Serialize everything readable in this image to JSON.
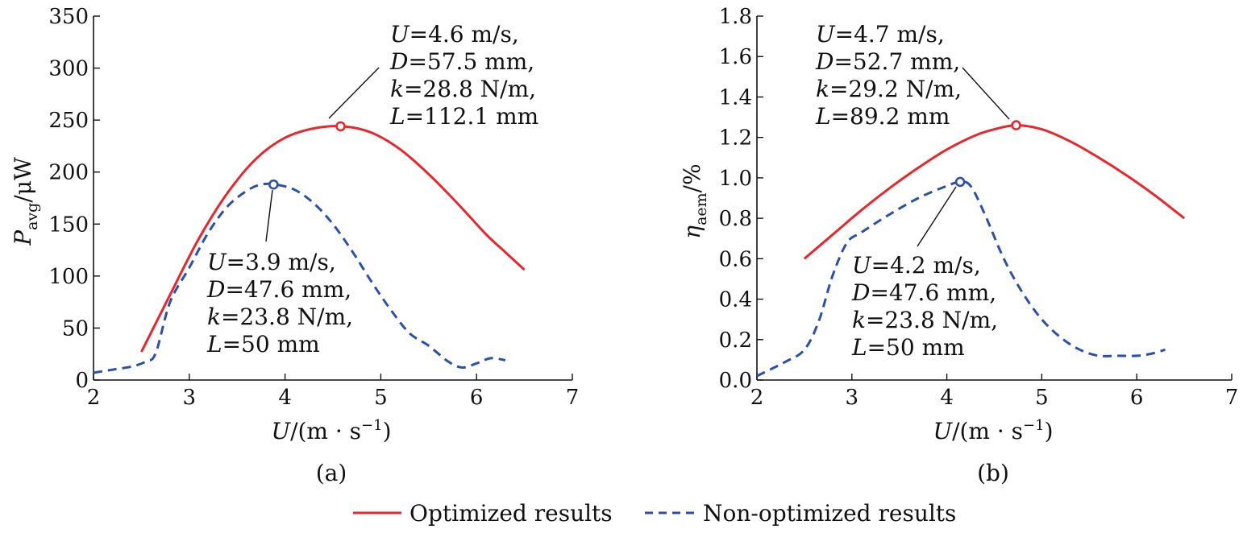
{
  "chart_data": [
    {
      "type": "line",
      "panel_label": "(a)",
      "xlabel": "U/(m·s⁻¹)",
      "ylabel": "Pavg/μW",
      "ylabel_main": "P",
      "ylabel_sub": "avg",
      "ylabel_unit": "/μW",
      "xlim": [
        2,
        7
      ],
      "ylim": [
        0,
        350
      ],
      "xticks": [
        "2",
        "3",
        "4",
        "5",
        "6",
        "7"
      ],
      "yticks": [
        "0",
        "50",
        "100",
        "150",
        "200",
        "250",
        "300",
        "350"
      ],
      "series": [
        {
          "name": "Optimized results",
          "color": "#e8262d",
          "style": "solid",
          "x": [
            2.5,
            2.8,
            3.1,
            3.4,
            3.7,
            4.0,
            4.3,
            4.6,
            4.9,
            5.2,
            5.5,
            5.8,
            6.1,
            6.3,
            6.5
          ],
          "y": [
            27,
            82,
            136,
            180,
            213,
            233,
            242,
            244,
            238,
            222,
            198,
            170,
            140,
            123,
            106
          ]
        },
        {
          "name": "Non-optimized results",
          "color": "#2b4faa",
          "style": "dashed",
          "x": [
            2.0,
            2.2,
            2.4,
            2.55,
            2.65,
            2.8,
            3.0,
            3.2,
            3.4,
            3.6,
            3.75,
            3.9,
            4.1,
            4.3,
            4.5,
            4.7,
            4.9,
            5.1,
            5.3,
            5.5,
            5.7,
            5.85,
            6.0,
            6.15,
            6.3
          ],
          "y": [
            7,
            10,
            13,
            18,
            26,
            75,
            108,
            142,
            167,
            182,
            188,
            188,
            183,
            170,
            150,
            124,
            95,
            68,
            45,
            33,
            18,
            12,
            16,
            21,
            19
          ]
        }
      ],
      "markers": [
        {
          "series": "Optimized results",
          "x": 4.58,
          "y": 244
        },
        {
          "series": "Non-optimized results",
          "x": 3.88,
          "y": 188
        }
      ],
      "annotations": [
        {
          "lines": [
            "U=4.6 m/s,",
            "D=57.5 mm,",
            "k=28.8 N/m,",
            "L=112.1 mm"
          ]
        },
        {
          "lines": [
            "U=3.9 m/s,",
            "D=47.6 mm,",
            "k=23.8 N/m,",
            "L=50 mm"
          ]
        }
      ]
    },
    {
      "type": "line",
      "panel_label": "(b)",
      "xlabel": "U/(m·s⁻¹)",
      "ylabel": "ηaem/%",
      "ylabel_main": "η",
      "ylabel_sub": "aem",
      "ylabel_unit": "/%",
      "xlim": [
        2,
        7
      ],
      "ylim": [
        0,
        1.8
      ],
      "xticks": [
        "2",
        "3",
        "4",
        "5",
        "6",
        "7"
      ],
      "yticks": [
        "0.0",
        "0.2",
        "0.4",
        "0.6",
        "0.8",
        "1.0",
        "1.2",
        "1.4",
        "1.6",
        "1.8"
      ],
      "series": [
        {
          "name": "Optimized results",
          "color": "#e8262d",
          "style": "solid",
          "x": [
            2.5,
            2.8,
            3.1,
            3.4,
            3.7,
            4.0,
            4.3,
            4.5,
            4.73,
            5.0,
            5.3,
            5.6,
            5.9,
            6.2,
            6.5
          ],
          "y": [
            0.6,
            0.72,
            0.84,
            0.95,
            1.05,
            1.14,
            1.21,
            1.24,
            1.26,
            1.24,
            1.18,
            1.1,
            1.01,
            0.91,
            0.8
          ]
        },
        {
          "name": "Non-optimized results",
          "color": "#2b4faa",
          "style": "dashed",
          "x": [
            2.0,
            2.3,
            2.5,
            2.65,
            2.8,
            2.95,
            3.1,
            3.4,
            3.7,
            4.0,
            4.14,
            4.25,
            4.4,
            4.6,
            4.8,
            5.0,
            5.2,
            5.4,
            5.6,
            5.8,
            6.0,
            6.15,
            6.3
          ],
          "y": [
            0.02,
            0.09,
            0.15,
            0.29,
            0.52,
            0.68,
            0.73,
            0.82,
            0.9,
            0.96,
            0.98,
            0.96,
            0.82,
            0.6,
            0.43,
            0.3,
            0.21,
            0.15,
            0.12,
            0.12,
            0.12,
            0.13,
            0.15
          ]
        }
      ],
      "markers": [
        {
          "series": "Optimized results",
          "x": 4.73,
          "y": 1.26
        },
        {
          "series": "Non-optimized results",
          "x": 4.14,
          "y": 0.98
        }
      ],
      "annotations": [
        {
          "lines": [
            "U=4.7 m/s,",
            "D=52.7 mm,",
            "k=29.2 N/m,",
            "L=89.2 mm"
          ]
        },
        {
          "lines": [
            "U=4.2 m/s,",
            "D=47.6 mm,",
            "k=23.8 N/m,",
            "L=50 mm"
          ]
        }
      ]
    }
  ],
  "legend": {
    "position": "bottom-center",
    "items": [
      {
        "label": "Optimized results",
        "color": "#e8262d",
        "style": "solid"
      },
      {
        "label": "Non-optimized results",
        "color": "#2b4faa",
        "style": "dashed"
      }
    ]
  }
}
